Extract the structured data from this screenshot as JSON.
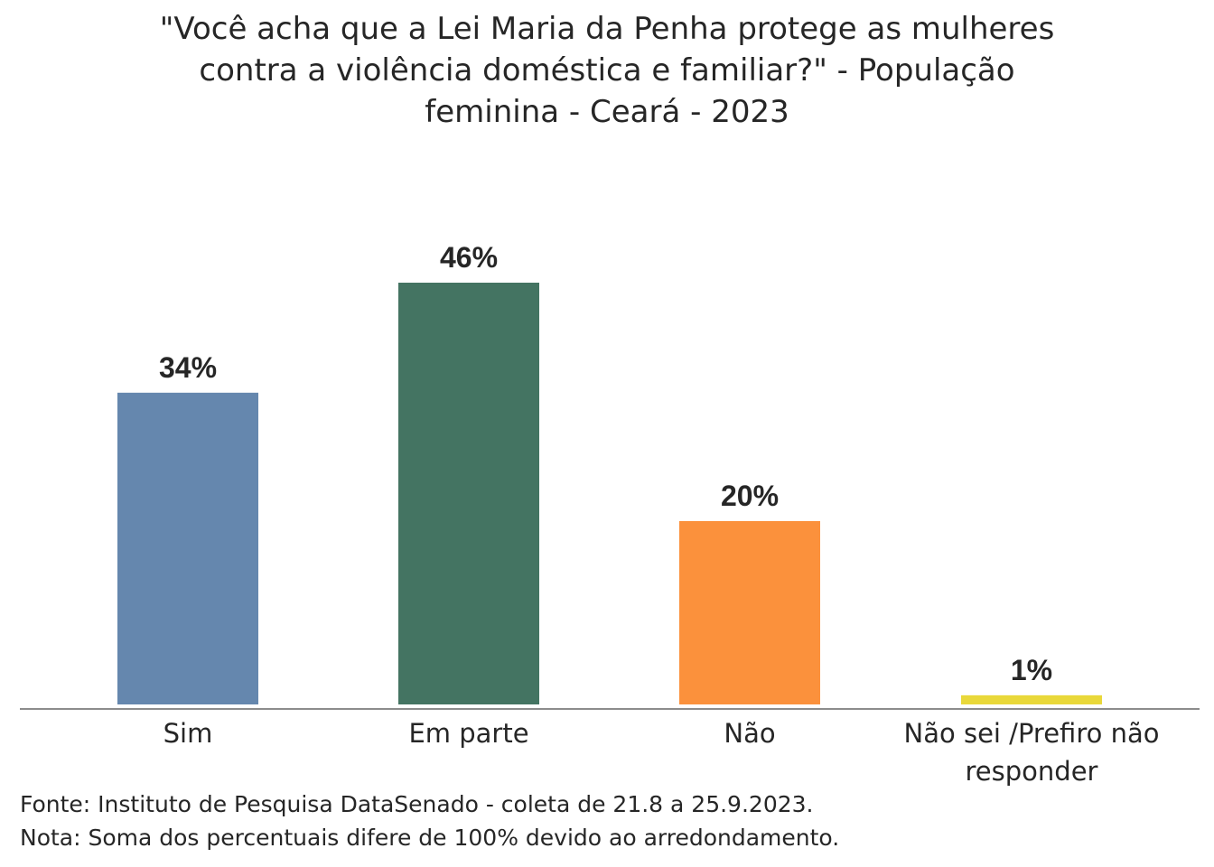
{
  "chart_data": {
    "type": "bar",
    "title_lines": [
      "\"Você acha que a Lei Maria da Penha protege as mulheres",
      "contra a violência doméstica e familiar?\" - População",
      "feminina - Ceará - 2023"
    ],
    "categories": [
      [
        "Sim"
      ],
      [
        "Em parte"
      ],
      [
        "Não"
      ],
      [
        "Não sei /Prefiro não",
        "responder"
      ]
    ],
    "values": [
      34,
      46,
      20,
      1
    ],
    "value_labels": [
      "34%",
      "46%",
      "20%",
      "1%"
    ],
    "colors": [
      "#6587ae",
      "#447462",
      "#fb913c",
      "#e9d83a"
    ],
    "ylim": [
      0,
      46
    ],
    "grid": false,
    "legend": "none"
  },
  "footer": {
    "source": "Fonte: Instituto de Pesquisa DataSenado - coleta de 21.8 a 25.9.2023.",
    "note": "Nota: Soma dos percentuais difere de 100% devido ao arredondamento."
  }
}
